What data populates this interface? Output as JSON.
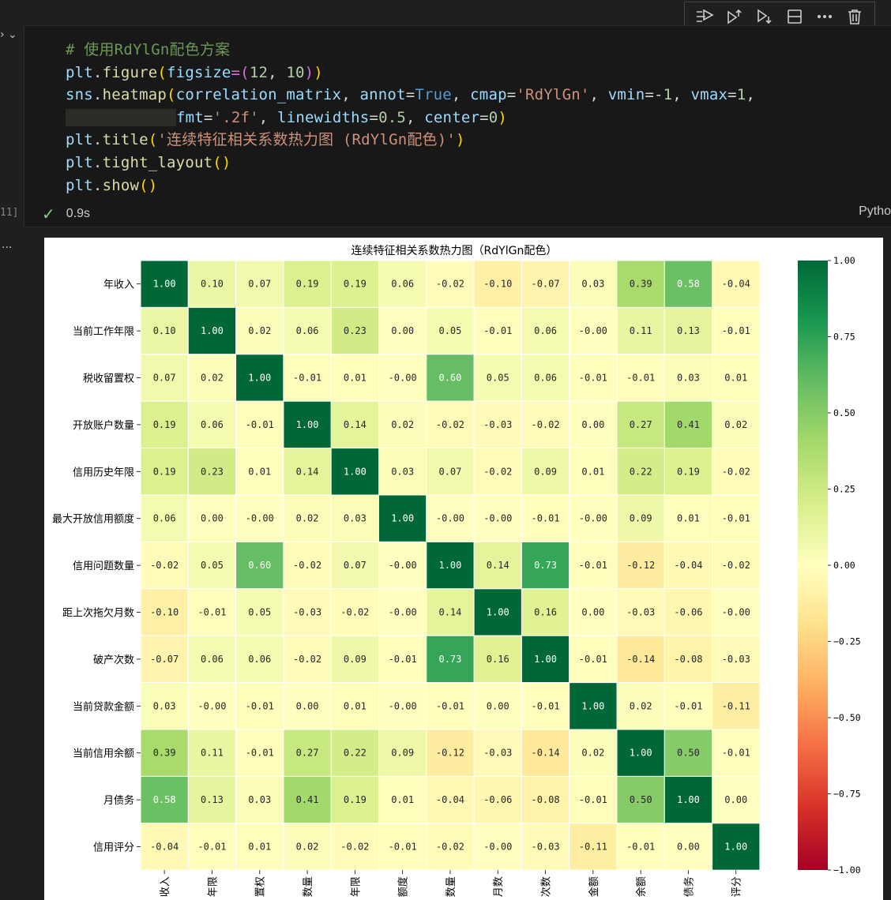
{
  "toolbar": {
    "icons": [
      "run-by-line-icon",
      "execute-above-icon",
      "execute-below-icon",
      "split-cell-icon",
      "more-icon",
      "delete-icon"
    ]
  },
  "cell": {
    "exec_count": "11]",
    "collapse_glyph": "›   ⌄",
    "status_time": "0.9s",
    "language": "Pytho",
    "output_glyph": "..."
  },
  "code": {
    "l1": "# 使用RdYlGn配色方案",
    "l2a": "plt",
    "l2b": ".",
    "l2c": "figure",
    "l2d": "(",
    "l2e": "figsize",
    "l2f": "=(",
    "l2g": "12",
    "l2h": ", ",
    "l2i": "10",
    "l2j": ")",
    "l2k": ")",
    "l3a": "sns",
    "l3b": ".",
    "l3c": "heatmap",
    "l3d": "(",
    "l3e": "correlation_matrix",
    "l3f": ", ",
    "l3g": "annot",
    "l3h": "=",
    "l3i": "True",
    "l3j": ", ",
    "l3k": "cmap",
    "l3l": "=",
    "l3m": "'RdYlGn'",
    "l3n": ", ",
    "l3o": "vmin",
    "l3p": "=-",
    "l3q": "1",
    "l3r": ", ",
    "l3s": "vmax",
    "l3t": "=",
    "l3u": "1",
    "l3v": ",",
    "l4a": "fmt",
    "l4b": "=",
    "l4c": "'.2f'",
    "l4d": ", ",
    "l4e": "linewidths",
    "l4f": "=",
    "l4g": "0.5",
    "l4h": ", ",
    "l4i": "center",
    "l4j": "=",
    "l4k": "0",
    "l4l": ")",
    "l5a": "plt",
    "l5b": ".",
    "l5c": "title",
    "l5d": "(",
    "l5e": "'连续特征相关系数热力图 (RdYlGn配色)'",
    "l5f": ")",
    "l6a": "plt",
    "l6b": ".",
    "l6c": "tight_layout",
    "l6d": "()",
    "l7a": "plt",
    "l7b": ".",
    "l7c": "show",
    "l7d": "()"
  },
  "chart_data": {
    "type": "heatmap",
    "title": "连续特征相关系数热力图（RdYlGn配色）",
    "rows": [
      "年收入",
      "当前工作年限",
      "税收留置权",
      "开放账户数量",
      "信用历史年限",
      "最大开放信用额度",
      "信用问题数量",
      "距上次拖欠月数",
      "破产次数",
      "当前贷款金额",
      "当前信用余额",
      "月债务",
      "信用评分"
    ],
    "columns": [
      "收入",
      "年限",
      "置权",
      "数量",
      "年限",
      "额度",
      "数量",
      "月数",
      "次数",
      "金额",
      "余额",
      "债务",
      "评分"
    ],
    "values": [
      [
        "1.00",
        "0.10",
        "0.07",
        "0.19",
        "0.19",
        "0.06",
        "-0.02",
        "-0.10",
        "-0.07",
        "0.03",
        "0.39",
        "0.58",
        "-0.04"
      ],
      [
        "0.10",
        "1.00",
        "0.02",
        "0.06",
        "0.23",
        "0.00",
        "0.05",
        "-0.01",
        "0.06",
        "-0.00",
        "0.11",
        "0.13",
        "-0.01"
      ],
      [
        "0.07",
        "0.02",
        "1.00",
        "-0.01",
        "0.01",
        "-0.00",
        "0.60",
        "0.05",
        "0.06",
        "-0.01",
        "-0.01",
        "0.03",
        "0.01"
      ],
      [
        "0.19",
        "0.06",
        "-0.01",
        "1.00",
        "0.14",
        "0.02",
        "-0.02",
        "-0.03",
        "-0.02",
        "0.00",
        "0.27",
        "0.41",
        "0.02"
      ],
      [
        "0.19",
        "0.23",
        "0.01",
        "0.14",
        "1.00",
        "0.03",
        "0.07",
        "-0.02",
        "0.09",
        "0.01",
        "0.22",
        "0.19",
        "-0.02"
      ],
      [
        "0.06",
        "0.00",
        "-0.00",
        "0.02",
        "0.03",
        "1.00",
        "-0.00",
        "-0.00",
        "-0.01",
        "-0.00",
        "0.09",
        "0.01",
        "-0.01"
      ],
      [
        "-0.02",
        "0.05",
        "0.60",
        "-0.02",
        "0.07",
        "-0.00",
        "1.00",
        "0.14",
        "0.73",
        "-0.01",
        "-0.12",
        "-0.04",
        "-0.02"
      ],
      [
        "-0.10",
        "-0.01",
        "0.05",
        "-0.03",
        "-0.02",
        "-0.00",
        "0.14",
        "1.00",
        "0.16",
        "0.00",
        "-0.03",
        "-0.06",
        "-0.00"
      ],
      [
        "-0.07",
        "0.06",
        "0.06",
        "-0.02",
        "0.09",
        "-0.01",
        "0.73",
        "0.16",
        "1.00",
        "-0.01",
        "-0.14",
        "-0.08",
        "-0.03"
      ],
      [
        "0.03",
        "-0.00",
        "-0.01",
        "0.00",
        "0.01",
        "-0.00",
        "-0.01",
        "0.00",
        "-0.01",
        "1.00",
        "0.02",
        "-0.01",
        "-0.11"
      ],
      [
        "0.39",
        "0.11",
        "-0.01",
        "0.27",
        "0.22",
        "0.09",
        "-0.12",
        "-0.03",
        "-0.14",
        "0.02",
        "1.00",
        "0.50",
        "-0.01"
      ],
      [
        "0.58",
        "0.13",
        "0.03",
        "0.41",
        "0.19",
        "0.01",
        "-0.04",
        "-0.06",
        "-0.08",
        "-0.01",
        "0.50",
        "1.00",
        "0.00"
      ],
      [
        "-0.04",
        "-0.01",
        "0.01",
        "0.02",
        "-0.02",
        "-0.01",
        "-0.02",
        "-0.00",
        "-0.03",
        "-0.11",
        "-0.01",
        "0.00",
        "1.00"
      ]
    ],
    "vmin": -1,
    "vmax": 1,
    "center": 0,
    "colormap": "RdYlGn",
    "colorbar_ticks": [
      "1.00",
      "0.75",
      "0.50",
      "0.25",
      "0.00",
      "−0.25",
      "−0.50",
      "−0.75",
      "−1.00"
    ],
    "colorbar_tick_values": [
      1,
      0.75,
      0.5,
      0.25,
      0,
      -0.25,
      -0.5,
      -0.75,
      -1
    ]
  }
}
